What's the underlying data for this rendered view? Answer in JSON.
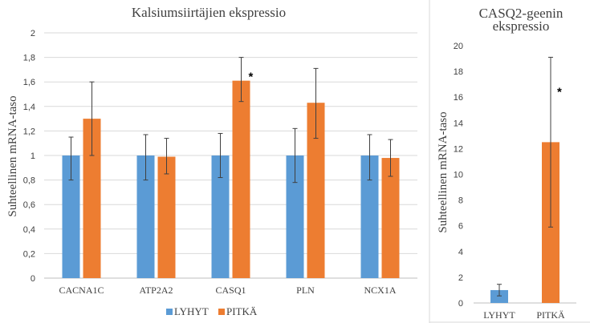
{
  "colors": {
    "lyhyt": "#5b9bd5",
    "pitka": "#ed7d31",
    "grid": "#d9d9d9",
    "error": "#404040"
  },
  "chart_data": [
    {
      "type": "bar",
      "title": "Kalsiumsiirtäjien ekspressio",
      "ylabel": "Suhteellinen mRNA-taso",
      "xlabel": "",
      "ylim": [
        0,
        2
      ],
      "yticks": [
        "0",
        "0,2",
        "0,4",
        "0,6",
        "0,8",
        "1",
        "1,2",
        "1,4",
        "1,6",
        "1,8",
        "2"
      ],
      "categories": [
        "CACNA1C",
        "ATP2A2",
        "CASQ1",
        "PLN",
        "NCX1A"
      ],
      "series": [
        {
          "name": "LYHYT",
          "values": [
            1.0,
            1.0,
            1.0,
            1.0,
            1.0
          ],
          "err_low": [
            0.8,
            0.8,
            0.82,
            0.78,
            0.8
          ],
          "err_high": [
            1.15,
            1.17,
            1.18,
            1.22,
            1.17
          ]
        },
        {
          "name": "PITKÄ",
          "values": [
            1.3,
            0.99,
            1.61,
            1.43,
            0.98
          ],
          "err_low": [
            1.0,
            0.85,
            1.44,
            1.14,
            0.83
          ],
          "err_high": [
            1.6,
            1.14,
            1.8,
            1.71,
            1.13
          ]
        }
      ],
      "significance": [
        "",
        "",
        "*",
        "",
        ""
      ],
      "grid": true,
      "legend": "bottom"
    },
    {
      "type": "bar",
      "title": "CASQ2-geenin ekspressio",
      "ylabel": "Suhteellinen mRNA-taso",
      "xlabel": "",
      "ylim": [
        0,
        20
      ],
      "yticks": [
        "0",
        "2",
        "4",
        "6",
        "8",
        "10",
        "12",
        "14",
        "16",
        "18",
        "20"
      ],
      "categories": [
        "LYHYT",
        "PITKÄ"
      ],
      "values": [
        1.0,
        12.5
      ],
      "err_low": [
        0.55,
        5.9
      ],
      "err_high": [
        1.45,
        19.1
      ],
      "significance": [
        "",
        "*"
      ],
      "grid": false
    }
  ]
}
